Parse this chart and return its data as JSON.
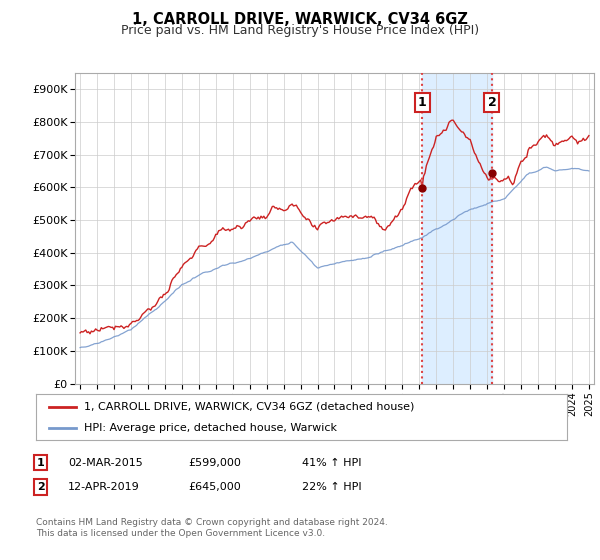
{
  "title": "1, CARROLL DRIVE, WARWICK, CV34 6GZ",
  "subtitle": "Price paid vs. HM Land Registry's House Price Index (HPI)",
  "ylim": [
    0,
    950000
  ],
  "yticks": [
    0,
    100000,
    200000,
    300000,
    400000,
    500000,
    600000,
    700000,
    800000,
    900000
  ],
  "ytick_labels": [
    "£0",
    "£100K",
    "£200K",
    "£300K",
    "£400K",
    "£500K",
    "£600K",
    "£700K",
    "£800K",
    "£900K"
  ],
  "plot_bg": "#ffffff",
  "grid_color": "#cccccc",
  "hpi_color": "#7799cc",
  "price_color": "#cc2222",
  "shade_color": "#ddeeff",
  "vline_color": "#dd4444",
  "transaction1_x": 2015.17,
  "transaction1_price": 599000,
  "transaction2_x": 2019.28,
  "transaction2_price": 645000,
  "legend_label_price": "1, CARROLL DRIVE, WARWICK, CV34 6GZ (detached house)",
  "legend_label_hpi": "HPI: Average price, detached house, Warwick",
  "footer1": "Contains HM Land Registry data © Crown copyright and database right 2024.",
  "footer2": "This data is licensed under the Open Government Licence v3.0.",
  "annotation1_date": "02-MAR-2015",
  "annotation1_price": "£599,000",
  "annotation1_hpi": "41% ↑ HPI",
  "annotation2_date": "12-APR-2019",
  "annotation2_price": "£645,000",
  "annotation2_hpi": "22% ↑ HPI"
}
